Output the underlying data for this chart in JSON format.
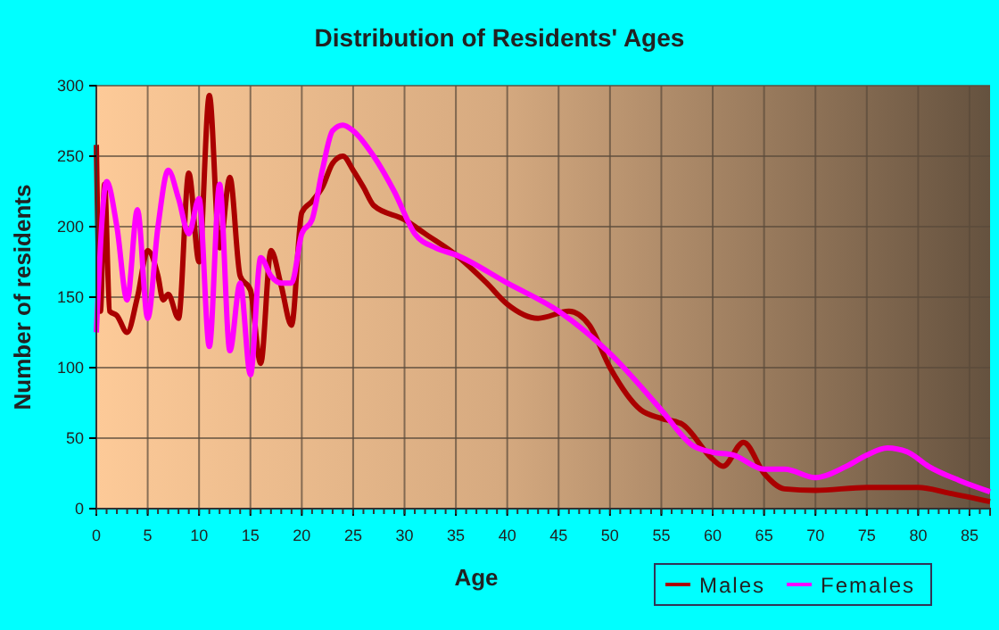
{
  "chart_data": {
    "type": "line",
    "title": "Distribution of Residents' Ages",
    "xlabel": "Age",
    "ylabel": "Number of residents",
    "xlim": [
      0,
      87
    ],
    "xticks": [
      0,
      5,
      10,
      15,
      20,
      25,
      30,
      35,
      40,
      45,
      50,
      55,
      60,
      65,
      70,
      75,
      80,
      85
    ],
    "ylim": [
      0,
      300
    ],
    "yticks": [
      0,
      50,
      100,
      150,
      200,
      250,
      300
    ],
    "grid": true,
    "legend": "bottom right",
    "series": [
      {
        "name": "Males",
        "color": "#aa0000",
        "x": [
          0,
          0.4,
          0.8,
          1.3,
          2,
          3,
          4,
          5,
          6,
          6.5,
          7,
          8,
          9,
          10,
          11,
          12,
          13,
          14,
          15,
          16,
          17,
          18,
          19,
          20,
          21,
          22,
          23,
          24,
          25,
          26,
          27,
          30,
          32,
          35,
          38,
          40,
          43,
          46,
          48,
          50,
          53,
          55,
          57,
          60,
          61,
          63,
          65,
          67,
          70,
          75,
          80,
          83,
          87
        ],
        "values": [
          258,
          140,
          230,
          140,
          137,
          125,
          150,
          183,
          165,
          148,
          152,
          135,
          238,
          175,
          293,
          185,
          235,
          165,
          155,
          103,
          183,
          158,
          130,
          210,
          218,
          228,
          245,
          250,
          240,
          228,
          215,
          205,
          195,
          180,
          160,
          145,
          135,
          140,
          130,
          100,
          70,
          64,
          60,
          35,
          30,
          47,
          25,
          14,
          13,
          15,
          15,
          11,
          5
        ]
      },
      {
        "name": "Females",
        "color": "#ff00ff",
        "x": [
          0,
          1,
          2,
          3,
          4,
          5,
          6,
          7,
          8,
          9,
          10,
          11,
          12,
          13,
          14,
          15,
          16,
          17,
          18,
          19,
          20,
          21,
          22,
          23,
          24,
          25,
          27,
          29,
          31,
          33,
          35,
          40,
          45,
          50,
          55,
          58,
          60,
          62,
          65,
          67,
          70,
          73,
          75,
          77,
          79,
          81,
          84,
          87
        ],
        "values": [
          125,
          232,
          200,
          148,
          212,
          135,
          200,
          240,
          220,
          195,
          220,
          115,
          230,
          112,
          160,
          95,
          178,
          165,
          160,
          160,
          195,
          205,
          240,
          268,
          272,
          268,
          250,
          225,
          195,
          185,
          180,
          160,
          140,
          110,
          70,
          45,
          40,
          38,
          28,
          28,
          22,
          30,
          38,
          43,
          40,
          30,
          20,
          12
        ]
      }
    ]
  }
}
